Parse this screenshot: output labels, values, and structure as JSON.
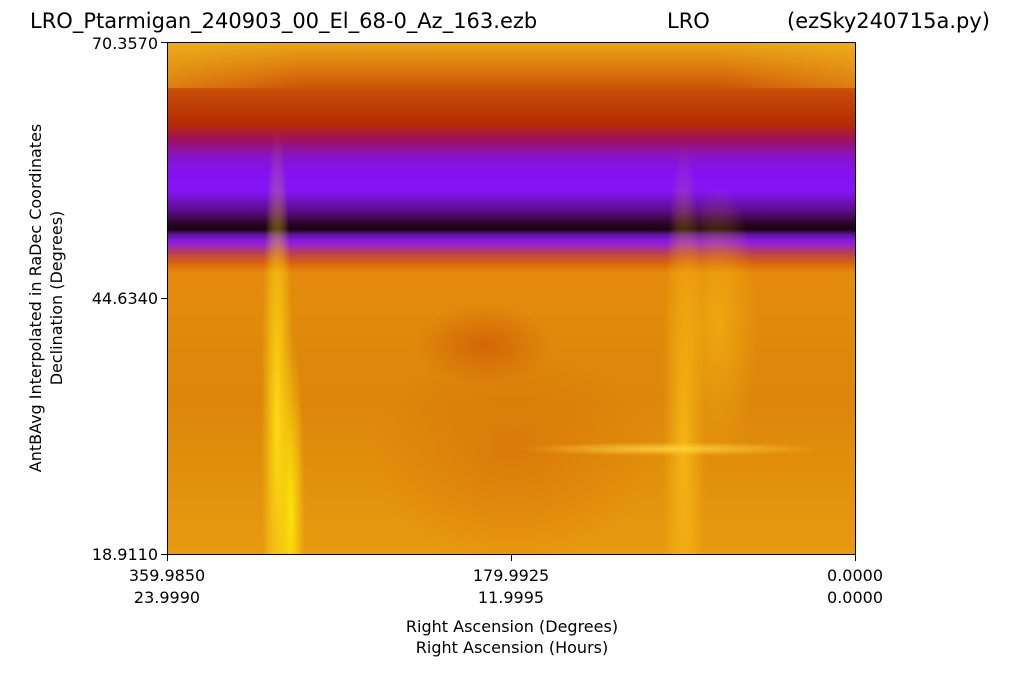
{
  "title": {
    "left": "LRO_Ptarmigan_240903_00_El_68-0_Az_163.ezb",
    "center": "LRO",
    "right": "(ezSky240715a.py)"
  },
  "chart_data": {
    "type": "heatmap",
    "colormap": "gnuplot-style (black-purple-red-orange-yellow)",
    "ylabel_line1": "AntBAvg Interpolated in RaDec Coordinates",
    "ylabel_line2": "Declination (Degrees)",
    "xlabel_line1": "Right Ascension (Degrees)",
    "xlabel_line2": "Right Ascension (Hours)",
    "ylim": [
      18.911,
      70.357
    ],
    "xlim_degrees": [
      359.985,
      0.0
    ],
    "y_ticks": [
      "70.3570",
      "44.6340",
      "18.9110"
    ],
    "x_ticks_degrees": [
      "359.9850",
      "179.9925",
      "0.0000"
    ],
    "x_ticks_hours": [
      "23.9990",
      "11.9995",
      "0.0000"
    ]
  }
}
